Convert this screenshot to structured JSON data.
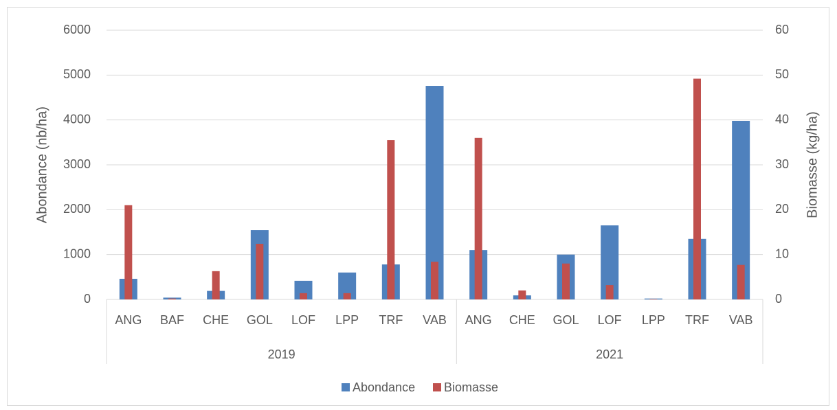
{
  "chart_data": {
    "type": "bar",
    "ylabel": "Abondance (nb/ha)",
    "y2label": "Biomasse (kg/ha)",
    "groups": [
      {
        "name": "2019",
        "categories": [
          "ANG",
          "BAF",
          "CHE",
          "GOL",
          "LOF",
          "LPP",
          "TRF",
          "VAB"
        ]
      },
      {
        "name": "2021",
        "categories": [
          "ANG",
          "CHE",
          "GOL",
          "LOF",
          "LPP",
          "TRF",
          "VAB"
        ]
      }
    ],
    "series": [
      {
        "name": "Abondance",
        "color": "#4f81bd",
        "values": [
          460,
          40,
          190,
          1545,
          415,
          600,
          780,
          4760,
          1100,
          90,
          1000,
          1650,
          20,
          1350,
          3980
        ]
      },
      {
        "name": "Biomasse",
        "color": "#c0504d",
        "axis": "y2",
        "values": [
          21,
          0.2,
          6.3,
          12.4,
          1.4,
          1.4,
          35.5,
          8.4,
          36,
          2,
          8,
          3.2,
          0.1,
          49.2,
          7.7
        ]
      }
    ],
    "ylim": [
      0,
      6000
    ],
    "yticks": [
      0,
      1000,
      2000,
      3000,
      4000,
      5000,
      6000
    ],
    "y2lim": [
      0,
      60
    ],
    "y2ticks": [
      0,
      10,
      20,
      30,
      40,
      50,
      60
    ],
    "grid": true,
    "legend": "bottom"
  }
}
